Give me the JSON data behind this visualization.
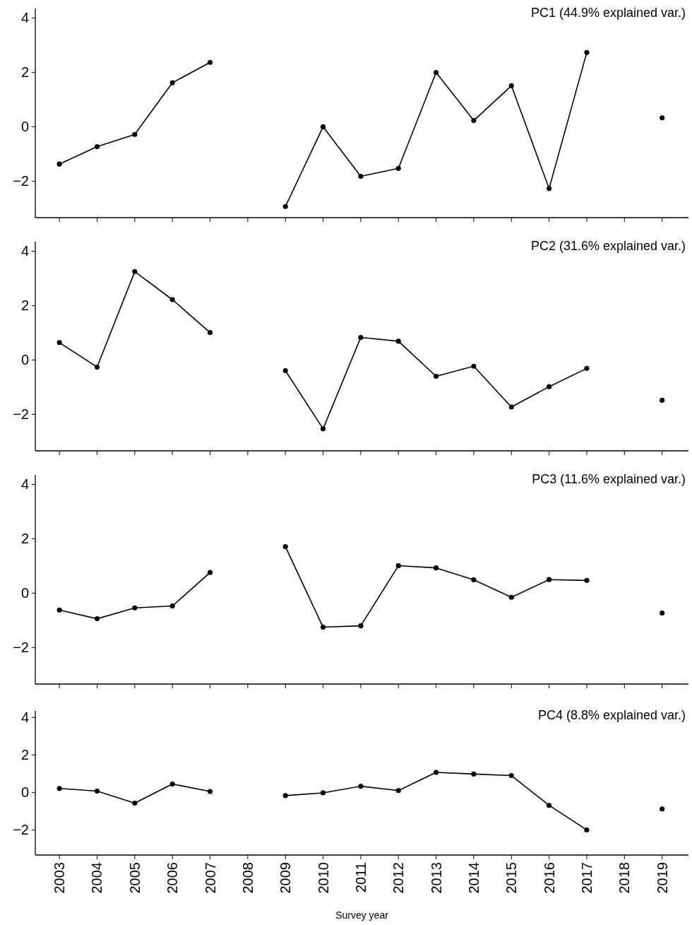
{
  "chart_data": [
    {
      "type": "line",
      "title": "PC1 (44.9% explained var.)",
      "categories": [
        "2003",
        "2004",
        "2005",
        "2006",
        "2007",
        "2008",
        "2009",
        "2010",
        "2011",
        "2012",
        "2013",
        "2014",
        "2015",
        "2016",
        "2017",
        "2018",
        "2019"
      ],
      "series": [
        {
          "color": "#000000",
          "values": [
            -1.37,
            -0.73,
            -0.28,
            1.62,
            2.37,
            null,
            -2.93,
            0,
            -1.82,
            -1.53,
            2.0,
            0.23,
            1.51,
            -2.27,
            2.73,
            null,
            0.33
          ]
        }
      ],
      "ylim": [
        -3.34,
        4.35
      ],
      "yticks": [
        -2,
        0,
        2,
        4
      ],
      "marker": "circle",
      "tick_labels": "y"
    },
    {
      "type": "line",
      "title": "PC2 (31.6% explained var.)",
      "categories": [
        "2003",
        "2004",
        "2005",
        "2006",
        "2007",
        "2008",
        "2009",
        "2010",
        "2011",
        "2012",
        "2013",
        "2014",
        "2015",
        "2016",
        "2017",
        "2018",
        "2019"
      ],
      "series": [
        {
          "color": "#000000",
          "values": [
            0.64,
            -0.26,
            3.25,
            2.22,
            1.01,
            null,
            -0.39,
            -2.53,
            0.83,
            0.69,
            -0.6,
            -0.23,
            -1.73,
            -0.98,
            -0.31,
            null,
            -1.48
          ]
        }
      ],
      "ylim": [
        -3.34,
        4.35
      ],
      "yticks": [
        -2,
        0,
        2,
        4
      ],
      "marker": "circle",
      "tick_labels": "y"
    },
    {
      "type": "line",
      "title": "PC3 (11.6% explained var.)",
      "categories": [
        "2003",
        "2004",
        "2005",
        "2006",
        "2007",
        "2008",
        "2009",
        "2010",
        "2011",
        "2012",
        "2013",
        "2014",
        "2015",
        "2016",
        "2017",
        "2018",
        "2019"
      ],
      "series": [
        {
          "color": "#000000",
          "values": [
            -0.62,
            -0.94,
            -0.54,
            -0.47,
            0.76,
            null,
            1.71,
            -1.25,
            -1.2,
            1.01,
            0.93,
            0.49,
            -0.15,
            0.5,
            0.47,
            null,
            -0.73
          ]
        }
      ],
      "ylim": [
        -3.34,
        4.35
      ],
      "yticks": [
        -2,
        0,
        2,
        4
      ],
      "marker": "circle",
      "tick_labels": "y"
    },
    {
      "type": "line",
      "title": "PC4 (8.8% explained var.)",
      "xlabel": "Survey year",
      "categories": [
        "2003",
        "2004",
        "2005",
        "2006",
        "2007",
        "2008",
        "2009",
        "2010",
        "2011",
        "2012",
        "2013",
        "2014",
        "2015",
        "2016",
        "2017",
        "2018",
        "2019"
      ],
      "series": [
        {
          "color": "#000000",
          "values": [
            0.21,
            0.07,
            -0.57,
            0.45,
            0.05,
            null,
            -0.17,
            -0.02,
            0.33,
            0.1,
            1.07,
            0.98,
            0.9,
            -0.69,
            -2.0,
            null,
            -0.88
          ]
        }
      ],
      "ylim": [
        -3.34,
        4.35
      ],
      "yticks": [
        -2,
        0,
        2,
        4
      ],
      "marker": "circle"
    }
  ]
}
